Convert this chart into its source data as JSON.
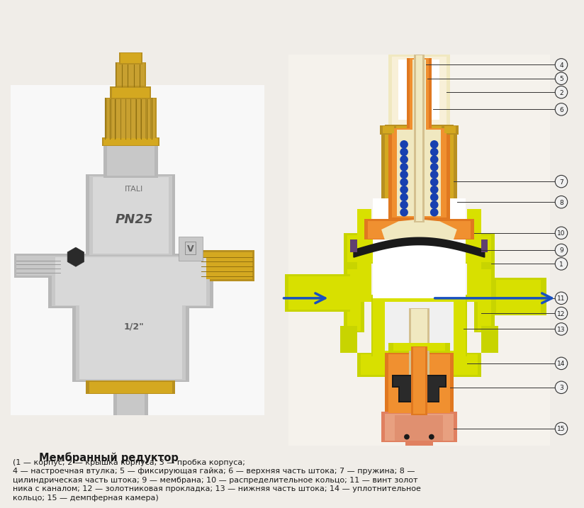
{
  "bg_color": "#f0ede8",
  "title_text": "Мембранный редуктор",
  "desc_lines": [
    "(1 — корпус; 2 — крышка корпуса; 3 — пробка корпуса;",
    "4 — настроечная втулка; 5 — фиксирующая гайка; 6 — верхняя часть штока; 7 — пружина; 8 —",
    "цилиндрическая часть штока; 9 — мембрана; 10 — распределительное кольцо; 11 — винт золот",
    "ника с каналом; 12 — золотниковая прокладка; 13 — нижняя часть штока; 14 — уплотнительное",
    "кольцо; 15 — демпферная камера)"
  ],
  "bold_numbers": [
    "1",
    "2",
    "3",
    "4",
    "5",
    "6",
    "7",
    "8",
    "9",
    "10",
    "11",
    "12",
    "13",
    "14",
    "15"
  ],
  "colors": {
    "yg": "#c8d400",
    "yg2": "#d8e000",
    "orange": "#e07820",
    "orange2": "#f09030",
    "dark_orange": "#c04000",
    "salmon": "#e08060",
    "pink_salmon": "#e8a080",
    "brass": "#b89020",
    "brass2": "#d4a820",
    "cream": "#f0e8c0",
    "tan": "#d4c090",
    "black": "#1a1a1a",
    "dark_purple": "#503060",
    "blue": "#1850c0",
    "blue_dot": "#1840b0",
    "white": "#ffffff",
    "off_white": "#f5f2ec",
    "silver": "#b8b8b8",
    "silver2": "#c8c8c8",
    "silver3": "#d8d8d8",
    "silver_dark": "#a0a0a0",
    "brass_dark": "#907010"
  }
}
